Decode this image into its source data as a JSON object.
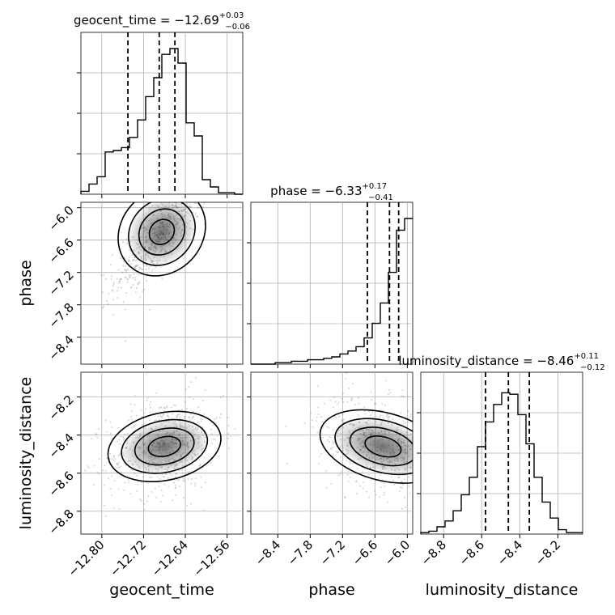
{
  "chart_data": {
    "type": "corner",
    "parameters": [
      {
        "name": "geocent_time",
        "title_prefix": "geocent_time = −12.69",
        "title_sup": "+0.03",
        "title_sub": "−0.06",
        "axis_label": "geocent_time",
        "ticks": [
          -12.8,
          -12.72,
          -12.64,
          -12.56
        ],
        "tick_labels": [
          "−12.80",
          "−12.72",
          "−12.64",
          "−12.56"
        ],
        "range": [
          -12.84,
          -12.53
        ],
        "quantiles": [
          -12.75,
          -12.69,
          -12.66
        ],
        "hist": [
          0.02,
          0.07,
          0.12,
          0.29,
          0.3,
          0.32,
          0.39,
          0.51,
          0.67,
          0.8,
          0.96,
          1.0,
          0.9,
          0.49,
          0.4,
          0.1,
          0.05,
          0.01,
          0.01,
          0.0
        ]
      },
      {
        "name": "phase",
        "title_prefix": "phase = −6.33",
        "title_sup": "+0.17",
        "title_sub": "−0.41",
        "axis_label": "phase",
        "ticks": [
          -8.4,
          -7.8,
          -7.2,
          -6.6,
          -6.0
        ],
        "tick_labels": [
          "−8.4",
          "−7.8",
          "−7.2",
          "−6.6",
          "−6.0"
        ],
        "range": [
          -8.9,
          -5.9
        ],
        "quantiles": [
          -6.74,
          -6.33,
          -6.16
        ],
        "hist": [
          0.0,
          0.0,
          0.0,
          0.01,
          0.01,
          0.02,
          0.02,
          0.03,
          0.03,
          0.04,
          0.05,
          0.07,
          0.09,
          0.12,
          0.18,
          0.28,
          0.42,
          0.63,
          0.92,
          1.0
        ]
      },
      {
        "name": "luminosity_distance",
        "title_prefix": "luminosity_distance = −8.46",
        "title_sup": "+0.11",
        "title_sub": "−0.12",
        "axis_label": "luminosity_distance",
        "ticks": [
          -8.8,
          -8.6,
          -8.4,
          -8.2
        ],
        "tick_labels": [
          "−8.8",
          "−8.6",
          "−8.4",
          "−8.2"
        ],
        "range": [
          -8.92,
          -8.07
        ],
        "quantiles": [
          -8.58,
          -8.46,
          -8.35
        ],
        "hist": [
          0.01,
          0.02,
          0.05,
          0.09,
          0.16,
          0.27,
          0.39,
          0.6,
          0.77,
          0.89,
          0.97,
          0.96,
          0.82,
          0.62,
          0.39,
          0.22,
          0.11,
          0.03,
          0.01,
          0.01
        ]
      }
    ],
    "grid": true
  }
}
